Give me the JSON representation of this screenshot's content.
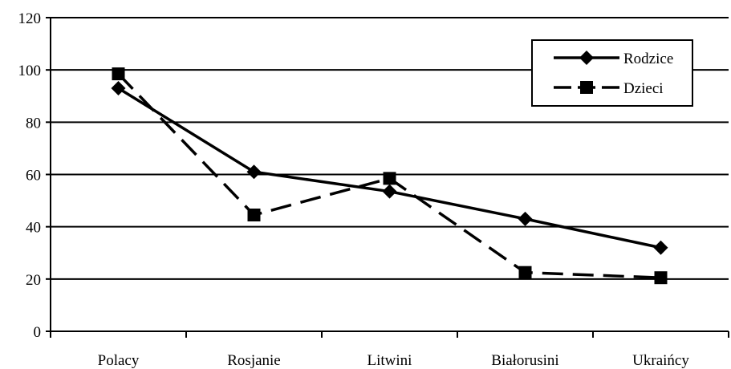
{
  "chart_data": {
    "type": "line",
    "categories": [
      "Polacy",
      "Rosjanie",
      "Litwini",
      "Białorusini",
      "Ukraińcy"
    ],
    "series": [
      {
        "name": "Rodzice",
        "values": [
          93,
          61,
          53.5,
          43,
          32
        ],
        "marker": "diamond",
        "line": "solid"
      },
      {
        "name": "Dzieci",
        "values": [
          98.5,
          44.5,
          58.5,
          22.5,
          20.5
        ],
        "marker": "square",
        "line": "dashed"
      }
    ],
    "ylim": [
      0,
      120
    ],
    "yticks": [
      0,
      20,
      40,
      60,
      80,
      100,
      120
    ],
    "grid": true,
    "legend": "top-right",
    "colors": {
      "line": "#000000",
      "grid": "#000000",
      "background": "#ffffff"
    }
  }
}
